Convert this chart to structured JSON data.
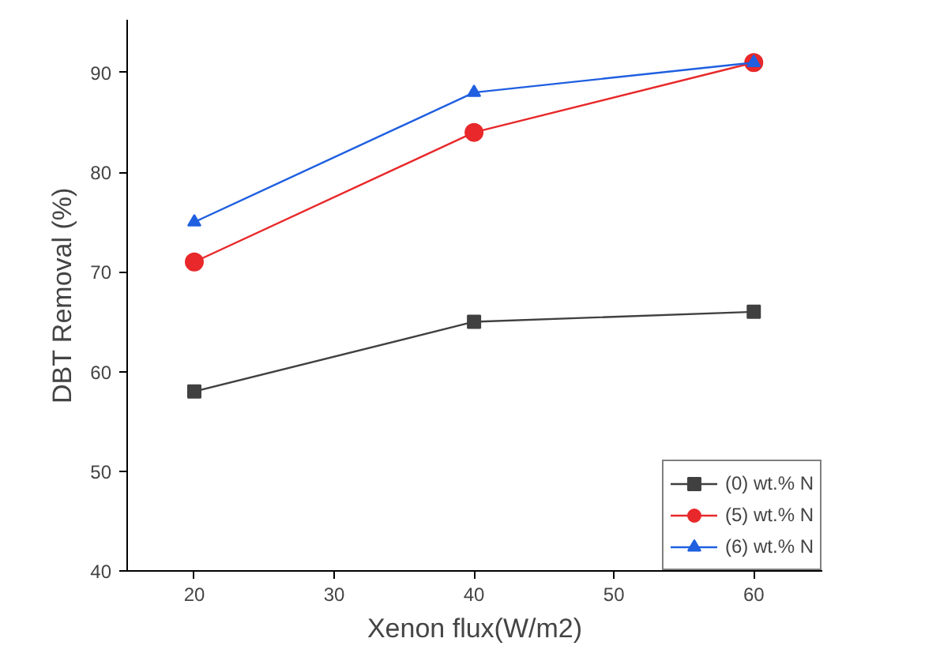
{
  "chart_data": {
    "type": "line",
    "xlabel": "Xenon flux(W/m2)",
    "ylabel": "DBT Removal (%)",
    "x": [
      20,
      40,
      60
    ],
    "series": [
      {
        "name": "(0) wt.% N",
        "color": "#404040",
        "marker": "square",
        "values": [
          58,
          65,
          66
        ]
      },
      {
        "name": "(5) wt.% N",
        "color": "#e8282a",
        "marker": "circle",
        "values": [
          71,
          84,
          91
        ]
      },
      {
        "name": "(6) wt.% N",
        "color": "#1f5fe0",
        "marker": "triangle",
        "values": [
          75,
          88,
          91
        ]
      }
    ],
    "xlim": [
      15.2,
      64.9
    ],
    "ylim": [
      40,
      95.3
    ],
    "xticks": [
      20,
      30,
      40,
      50,
      60
    ],
    "yticks": [
      40,
      50,
      60,
      70,
      80,
      90
    ],
    "grid": false,
    "legend": "bottom right",
    "line_style": "solid"
  }
}
